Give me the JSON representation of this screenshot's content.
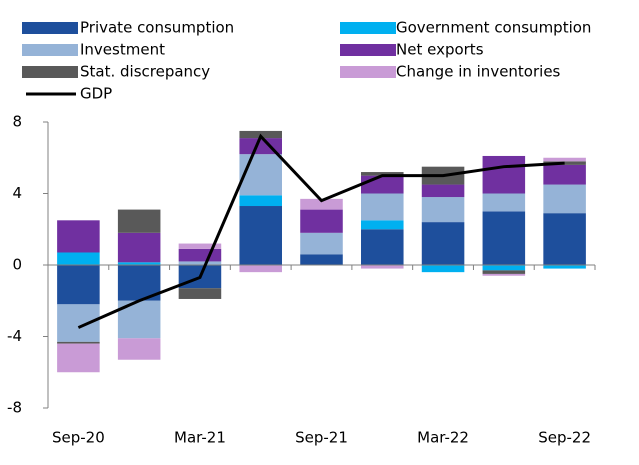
{
  "chart_data": {
    "type": "bar",
    "stacked": true,
    "categories": [
      "Sep-20",
      null,
      "Mar-21",
      null,
      "Sep-21",
      null,
      "Mar-22",
      null,
      "Sep-22"
    ],
    "series": [
      {
        "name": "Private consumption",
        "color": "#1e4f9c",
        "values": [
          -2.2,
          -2.0,
          -1.3,
          3.3,
          0.6,
          2.0,
          2.4,
          3.0,
          2.9
        ]
      },
      {
        "name": "Government consumption",
        "color": "#00b0f0",
        "values": [
          0.7,
          0.15,
          0,
          0.6,
          0,
          0.5,
          -0.4,
          -0.3,
          -0.2
        ]
      },
      {
        "name": "Investment",
        "color": "#95b3d7",
        "values": [
          -2.1,
          -2.1,
          0.2,
          2.3,
          1.2,
          1.5,
          1.4,
          1.0,
          1.6
        ]
      },
      {
        "name": "Net exports",
        "color": "#7030a0",
        "values": [
          1.8,
          1.65,
          0.7,
          0.9,
          1.3,
          1.0,
          0.7,
          2.1,
          1.1
        ]
      },
      {
        "name": "Stat. discrepancy",
        "color": "#595959",
        "values": [
          -0.1,
          1.3,
          -0.6,
          0.4,
          0,
          0.2,
          1.0,
          -0.2,
          0.2
        ]
      },
      {
        "name": "Change in inventories",
        "color": "#c99bd6",
        "values": [
          -1.6,
          -1.2,
          0.3,
          -0.4,
          0.6,
          -0.2,
          0,
          -0.1,
          0.2
        ]
      },
      {
        "name": "GDP",
        "type": "line",
        "color": "#000000",
        "values": [
          -3.5,
          -2.0,
          -0.7,
          7.2,
          3.6,
          5.0,
          5.0,
          5.5,
          5.7
        ]
      }
    ],
    "ylim": [
      -8,
      8
    ],
    "yticks": [
      -8,
      -4,
      0,
      4,
      8
    ],
    "grid": false,
    "legend": "top"
  }
}
